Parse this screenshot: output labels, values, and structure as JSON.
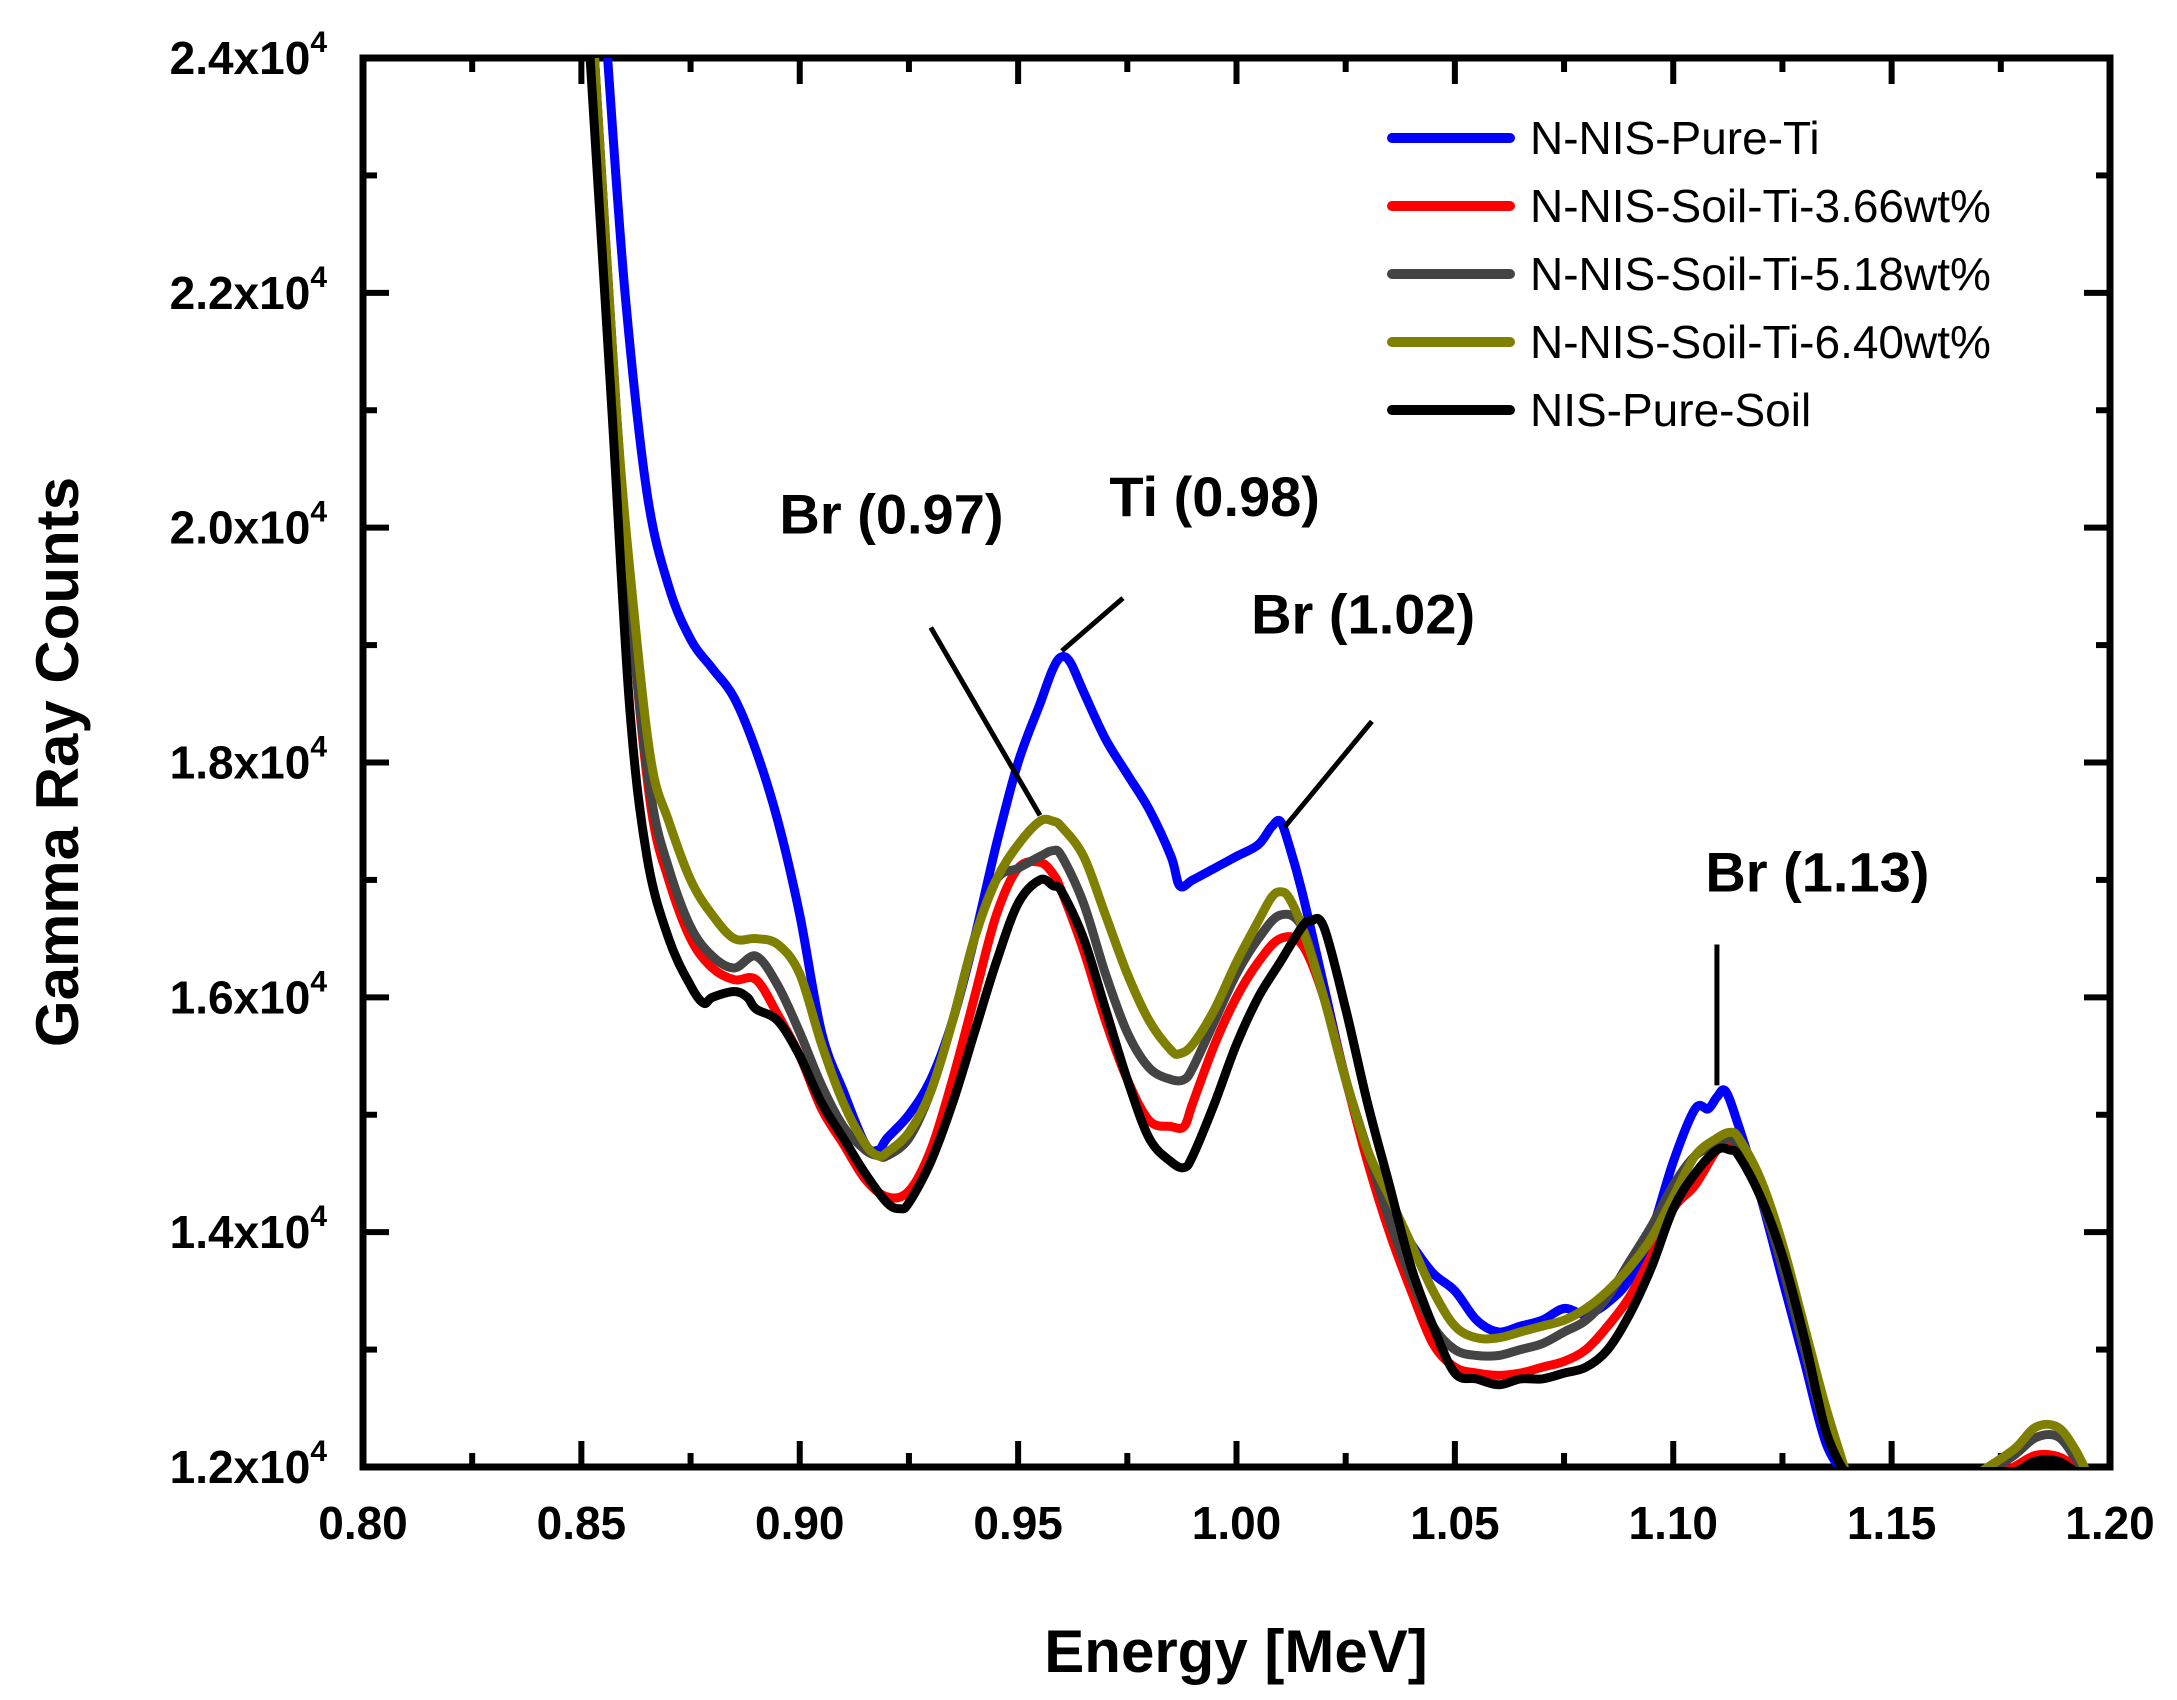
{
  "chart_data": {
    "type": "line",
    "title": "",
    "xlabel": "Energy [MeV]",
    "ylabel": "Gamma Ray Counts",
    "xlim": [
      0.8,
      1.2
    ],
    "ylim": [
      12000,
      24000
    ],
    "grid": false,
    "legend_position": "top-right",
    "x_ticks": [
      {
        "value": 0.8,
        "label": "0.80"
      },
      {
        "value": 0.85,
        "label": "0.85"
      },
      {
        "value": 0.9,
        "label": "0.90"
      },
      {
        "value": 0.95,
        "label": "0.95"
      },
      {
        "value": 1.0,
        "label": "1.00"
      },
      {
        "value": 1.05,
        "label": "1.05"
      },
      {
        "value": 1.1,
        "label": "1.10"
      },
      {
        "value": 1.15,
        "label": "1.15"
      },
      {
        "value": 1.2,
        "label": "1.20"
      }
    ],
    "y_ticks": [
      {
        "value": 12000,
        "mantissa": "1.2x10",
        "exp": "4"
      },
      {
        "value": 14000,
        "mantissa": "1.4x10",
        "exp": "4"
      },
      {
        "value": 16000,
        "mantissa": "1.6x10",
        "exp": "4"
      },
      {
        "value": 18000,
        "mantissa": "1.8x10",
        "exp": "4"
      },
      {
        "value": 20000,
        "mantissa": "2.0x10",
        "exp": "4"
      },
      {
        "value": 22000,
        "mantissa": "2.2x10",
        "exp": "4"
      },
      {
        "value": 24000,
        "mantissa": "2.4x10",
        "exp": "4"
      }
    ],
    "series": [
      {
        "name": "N-NIS-Pure-Ti",
        "color": "#0000ff",
        "x": [
          0.856,
          0.86,
          0.865,
          0.87,
          0.875,
          0.88,
          0.885,
          0.89,
          0.895,
          0.9,
          0.905,
          0.91,
          0.915,
          0.918,
          0.92,
          0.925,
          0.93,
          0.935,
          0.94,
          0.945,
          0.95,
          0.955,
          0.958,
          0.96,
          0.962,
          0.965,
          0.97,
          0.975,
          0.98,
          0.985,
          0.987,
          0.99,
          0.995,
          1.0,
          1.005,
          1.008,
          1.01,
          1.012,
          1.015,
          1.02,
          1.025,
          1.03,
          1.035,
          1.04,
          1.045,
          1.05,
          1.055,
          1.06,
          1.065,
          1.07,
          1.075,
          1.08,
          1.085,
          1.09,
          1.095,
          1.1,
          1.105,
          1.108,
          1.11,
          1.112,
          1.115,
          1.12,
          1.125,
          1.13,
          1.135,
          1.14
        ],
        "y": [
          24000,
          22000,
          20300,
          19500,
          19050,
          18800,
          18550,
          18100,
          17500,
          16700,
          15700,
          15200,
          14750,
          14700,
          14800,
          15000,
          15300,
          15800,
          16500,
          17300,
          18000,
          18500,
          18800,
          18900,
          18850,
          18600,
          18200,
          17900,
          17600,
          17200,
          16950,
          17000,
          17100,
          17200,
          17300,
          17450,
          17500,
          17300,
          16900,
          16100,
          15300,
          14700,
          14200,
          13900,
          13650,
          13500,
          13250,
          13150,
          13200,
          13250,
          13350,
          13300,
          13400,
          13600,
          14000,
          14600,
          15050,
          15050,
          15150,
          15200,
          14900,
          14300,
          13600,
          12900,
          12200,
          11900
        ]
      },
      {
        "name": "N-NIS-Soil-Ti-3.66wt%",
        "color": "#ff0000",
        "x": [
          0.853,
          0.858,
          0.862,
          0.866,
          0.87,
          0.875,
          0.88,
          0.885,
          0.89,
          0.895,
          0.9,
          0.905,
          0.91,
          0.915,
          0.92,
          0.925,
          0.93,
          0.935,
          0.94,
          0.945,
          0.95,
          0.955,
          0.958,
          0.96,
          0.965,
          0.97,
          0.975,
          0.98,
          0.985,
          0.988,
          0.99,
          0.995,
          1.0,
          1.005,
          1.01,
          1.015,
          1.02,
          1.025,
          1.03,
          1.035,
          1.04,
          1.045,
          1.05,
          1.055,
          1.06,
          1.065,
          1.07,
          1.075,
          1.08,
          1.085,
          1.09,
          1.095,
          1.1,
          1.105,
          1.11,
          1.113,
          1.115,
          1.12,
          1.125,
          1.13,
          1.135,
          1.14
        ],
        "y": [
          24000,
          21000,
          19000,
          17600,
          17000,
          16500,
          16250,
          16150,
          16150,
          15850,
          15500,
          15050,
          14750,
          14450,
          14300,
          14350,
          14700,
          15300,
          16000,
          16700,
          17100,
          17150,
          17050,
          16900,
          16400,
          15800,
          15300,
          14950,
          14900,
          14900,
          15100,
          15600,
          16000,
          16300,
          16500,
          16450,
          16000,
          15300,
          14600,
          14000,
          13500,
          13050,
          12850,
          12800,
          12780,
          12800,
          12850,
          12900,
          13000,
          13200,
          13450,
          13800,
          14200,
          14400,
          14700,
          14750,
          14700,
          14300,
          13700,
          13000,
          12300,
          11900
        ]
      },
      {
        "name": "N-NIS-Soil-Ti-5.18wt%",
        "color": "#444444",
        "x": [
          0.853,
          0.858,
          0.862,
          0.866,
          0.87,
          0.875,
          0.88,
          0.885,
          0.89,
          0.895,
          0.9,
          0.905,
          0.91,
          0.915,
          0.918,
          0.92,
          0.925,
          0.93,
          0.935,
          0.94,
          0.945,
          0.95,
          0.955,
          0.958,
          0.96,
          0.965,
          0.97,
          0.975,
          0.98,
          0.985,
          0.988,
          0.99,
          0.995,
          1.0,
          1.005,
          1.01,
          1.015,
          1.02,
          1.025,
          1.03,
          1.035,
          1.04,
          1.045,
          1.05,
          1.055,
          1.06,
          1.065,
          1.07,
          1.075,
          1.08,
          1.085,
          1.09,
          1.095,
          1.1,
          1.105,
          1.11,
          1.113,
          1.115,
          1.12,
          1.125,
          1.13,
          1.135,
          1.14
        ],
        "y": [
          24000,
          21000,
          19000,
          17700,
          17100,
          16600,
          16350,
          16250,
          16350,
          16100,
          15700,
          15250,
          14900,
          14700,
          14650,
          14650,
          14800,
          15200,
          15800,
          16500,
          17000,
          17100,
          17200,
          17250,
          17200,
          16800,
          16200,
          15700,
          15400,
          15300,
          15300,
          15400,
          15800,
          16200,
          16500,
          16700,
          16600,
          16000,
          15300,
          14700,
          14100,
          13600,
          13200,
          13000,
          12950,
          12950,
          13000,
          13050,
          13150,
          13250,
          13450,
          13750,
          14050,
          14400,
          14650,
          14750,
          14800,
          14700,
          14300,
          13700,
          13000,
          12300,
          11900
        ]
      },
      {
        "name": "N-NIS-Soil-Ti-6.40wt%",
        "color": "#808000",
        "x": [
          0.853,
          0.858,
          0.862,
          0.866,
          0.87,
          0.875,
          0.88,
          0.885,
          0.89,
          0.895,
          0.9,
          0.905,
          0.91,
          0.915,
          0.918,
          0.92,
          0.925,
          0.93,
          0.935,
          0.94,
          0.945,
          0.95,
          0.955,
          0.958,
          0.96,
          0.965,
          0.97,
          0.975,
          0.98,
          0.985,
          0.987,
          0.99,
          0.995,
          1.0,
          1.005,
          1.008,
          1.01,
          1.012,
          1.015,
          1.02,
          1.025,
          1.03,
          1.035,
          1.04,
          1.045,
          1.05,
          1.055,
          1.06,
          1.065,
          1.07,
          1.075,
          1.08,
          1.085,
          1.09,
          1.095,
          1.1,
          1.105,
          1.11,
          1.113,
          1.115,
          1.12,
          1.125,
          1.13,
          1.135,
          1.14
        ],
        "y": [
          24000,
          21000,
          19300,
          18000,
          17500,
          17000,
          16700,
          16500,
          16500,
          16450,
          16200,
          15600,
          15100,
          14750,
          14650,
          14680,
          14850,
          15200,
          15800,
          16500,
          17000,
          17300,
          17500,
          17500,
          17450,
          17200,
          16700,
          16200,
          15800,
          15550,
          15520,
          15600,
          15900,
          16300,
          16650,
          16850,
          16900,
          16850,
          16600,
          16000,
          15300,
          14700,
          14300,
          13900,
          13500,
          13200,
          13100,
          13100,
          13150,
          13200,
          13250,
          13350,
          13500,
          13700,
          13950,
          14300,
          14650,
          14800,
          14850,
          14800,
          14450,
          13900,
          13200,
          12500,
          11900
        ]
      },
      {
        "name": "NIS-Pure-Soil",
        "color": "#000000",
        "x": [
          0.852,
          0.857,
          0.861,
          0.865,
          0.87,
          0.875,
          0.878,
          0.88,
          0.885,
          0.888,
          0.89,
          0.895,
          0.9,
          0.905,
          0.91,
          0.915,
          0.92,
          0.923,
          0.925,
          0.93,
          0.935,
          0.94,
          0.945,
          0.95,
          0.955,
          0.958,
          0.96,
          0.965,
          0.97,
          0.975,
          0.98,
          0.985,
          0.988,
          0.99,
          0.995,
          1.0,
          1.005,
          1.01,
          1.015,
          1.017,
          1.02,
          1.025,
          1.03,
          1.035,
          1.04,
          1.045,
          1.05,
          1.055,
          1.06,
          1.065,
          1.07,
          1.075,
          1.08,
          1.085,
          1.09,
          1.095,
          1.1,
          1.105,
          1.11,
          1.113,
          1.115,
          1.12,
          1.125,
          1.13,
          1.135,
          1.14
        ],
        "y": [
          24000,
          21000,
          18500,
          17200,
          16500,
          16100,
          15950,
          16000,
          16050,
          16000,
          15900,
          15800,
          15500,
          15100,
          14800,
          14500,
          14250,
          14200,
          14250,
          14600,
          15100,
          15700,
          16300,
          16800,
          17000,
          16950,
          16900,
          16500,
          15900,
          15300,
          14800,
          14600,
          14550,
          14650,
          15100,
          15600,
          16000,
          16300,
          16600,
          16650,
          16600,
          15900,
          15100,
          14400,
          13700,
          13200,
          12800,
          12750,
          12700,
          12750,
          12750,
          12800,
          12850,
          13000,
          13300,
          13700,
          14200,
          14500,
          14700,
          14700,
          14650,
          14300,
          13800,
          13100,
          12300,
          11900
        ]
      }
    ],
    "tail_segments": [
      {
        "series": "N-NIS-Pure-Ti",
        "x": [
          1.17,
          1.178,
          1.183,
          1.188,
          1.192,
          1.196
        ],
        "y": [
          11850,
          11950,
          12070,
          12070,
          11980,
          11850
        ]
      },
      {
        "series": "N-NIS-Soil-Ti-3.66wt%",
        "x": [
          1.17,
          1.178,
          1.183,
          1.188,
          1.192,
          1.196
        ],
        "y": [
          11850,
          12000,
          12100,
          12090,
          12000,
          11850
        ]
      },
      {
        "series": "N-NIS-Soil-Ti-5.18wt%",
        "x": [
          1.17,
          1.178,
          1.183,
          1.188,
          1.192,
          1.196
        ],
        "y": [
          11900,
          12100,
          12250,
          12260,
          12080,
          11850
        ]
      },
      {
        "series": "N-NIS-Soil-Ti-6.40wt%",
        "x": [
          1.17,
          1.178,
          1.183,
          1.188,
          1.192,
          1.196
        ],
        "y": [
          11950,
          12150,
          12340,
          12340,
          12150,
          11850
        ]
      },
      {
        "series": "NIS-Pure-Soil",
        "x": [
          1.17,
          1.178,
          1.183,
          1.188,
          1.192,
          1.196
        ],
        "y": [
          11850,
          11950,
          12050,
          12050,
          11960,
          11850
        ]
      }
    ],
    "annotations": [
      {
        "text": "Br (0.97)",
        "text_x": 0.921,
        "text_y": 19950,
        "line": [
          0.93,
          19150,
          0.955,
          17550
        ]
      },
      {
        "text": "Ti (0.98)",
        "text_x": 0.995,
        "text_y": 20100,
        "line": [
          0.974,
          19400,
          0.96,
          18950
        ]
      },
      {
        "text": "Br (1.02)",
        "text_x": 1.029,
        "text_y": 19100,
        "line": [
          1.031,
          18350,
          1.011,
          17450
        ]
      },
      {
        "text": "Br (1.13)",
        "text_x": 1.133,
        "text_y": 16900,
        "line": [
          1.11,
          16450,
          1.11,
          15250
        ]
      }
    ]
  }
}
